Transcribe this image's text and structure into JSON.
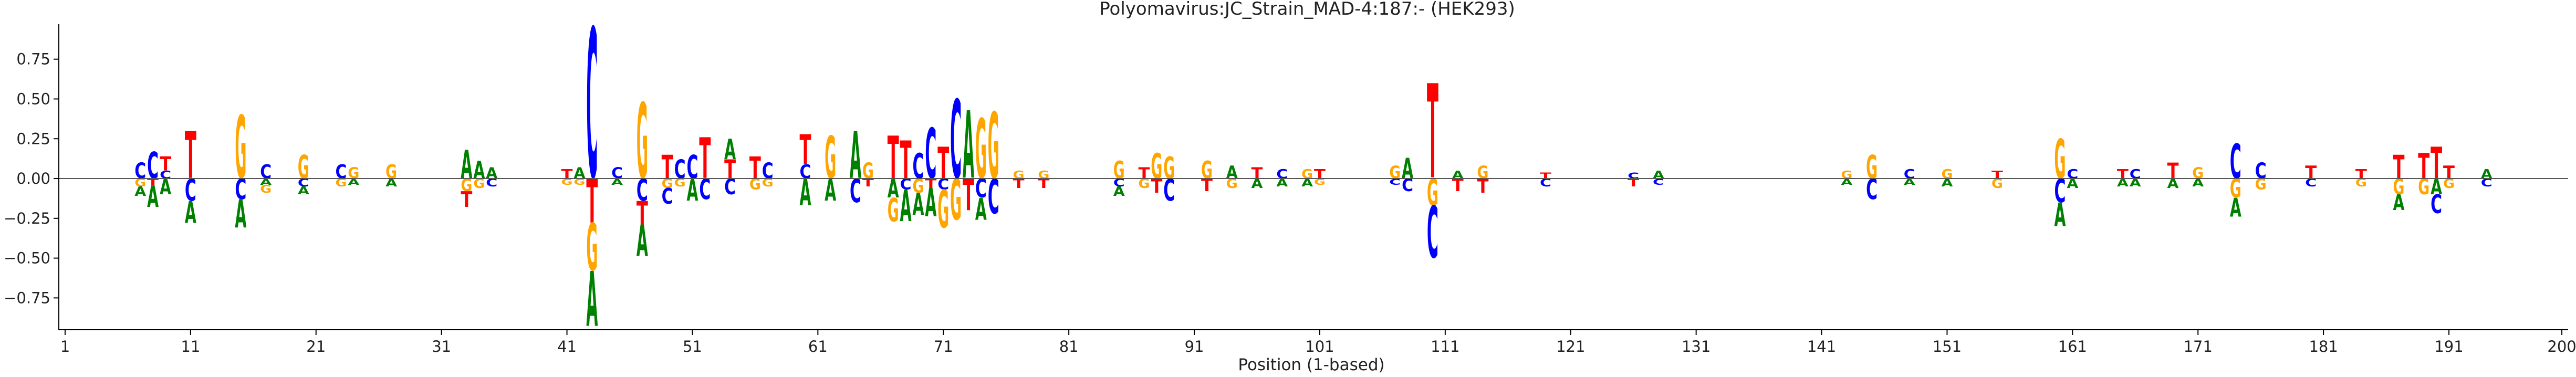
{
  "chart_data": {
    "type": "sequence-logo",
    "title": "Polyomavirus:JC_Strain_MAD-4:187:-  (HEK293)",
    "xlabel": "Position (1-based)",
    "ylabel": "",
    "xlim": [
      1,
      200
    ],
    "ylim": [
      -0.95,
      0.97
    ],
    "x_ticks": [
      1,
      11,
      21,
      31,
      41,
      51,
      61,
      71,
      81,
      91,
      101,
      111,
      121,
      131,
      141,
      151,
      161,
      171,
      181,
      191,
      200
    ],
    "y_ticks": [
      -0.75,
      -0.5,
      -0.25,
      0.0,
      0.25,
      0.5,
      0.75
    ],
    "y_tick_labels": [
      "−0.75",
      "−0.50",
      "−0.25",
      "0.00",
      "0.25",
      "0.50",
      "0.75"
    ],
    "colors": {
      "A": "#008000",
      "C": "#0000ff",
      "G": "#ffa500",
      "T": "#ff0000"
    },
    "baseline": true,
    "positions": [
      {
        "pos": 7,
        "letters": [
          {
            "b": "C",
            "v": 0.1
          },
          {
            "b": "G",
            "v": -0.05
          },
          {
            "b": "A",
            "v": -0.06
          }
        ]
      },
      {
        "pos": 8,
        "letters": [
          {
            "b": "C",
            "v": 0.17
          },
          {
            "b": "T",
            "v": -0.04
          },
          {
            "b": "A",
            "v": -0.14
          }
        ]
      },
      {
        "pos": 9,
        "letters": [
          {
            "b": "T",
            "v": 0.09
          },
          {
            "b": "C",
            "v": 0.05
          },
          {
            "b": "A",
            "v": -0.1
          }
        ]
      },
      {
        "pos": 11,
        "letters": [
          {
            "b": "T",
            "v": 0.3
          },
          {
            "b": "C",
            "v": -0.14
          },
          {
            "b": "A",
            "v": -0.14
          }
        ]
      },
      {
        "pos": 15,
        "letters": [
          {
            "b": "G",
            "v": 0.4
          },
          {
            "b": "C",
            "v": -0.13
          },
          {
            "b": "A",
            "v": -0.18
          }
        ]
      },
      {
        "pos": 17,
        "letters": [
          {
            "b": "C",
            "v": 0.09
          },
          {
            "b": "G",
            "v": -0.05
          },
          {
            "b": "A",
            "v": -0.04
          }
        ]
      },
      {
        "pos": 20,
        "letters": [
          {
            "b": "G",
            "v": 0.15
          },
          {
            "b": "C",
            "v": -0.05
          },
          {
            "b": "A",
            "v": -0.05
          }
        ]
      },
      {
        "pos": 23,
        "letters": [
          {
            "b": "C",
            "v": 0.09
          },
          {
            "b": "G",
            "v": -0.05
          }
        ]
      },
      {
        "pos": 24,
        "letters": [
          {
            "b": "G",
            "v": 0.07
          },
          {
            "b": "A",
            "v": -0.04
          }
        ]
      },
      {
        "pos": 27,
        "letters": [
          {
            "b": "G",
            "v": 0.09
          },
          {
            "b": "A",
            "v": -0.05
          }
        ]
      },
      {
        "pos": 33,
        "letters": [
          {
            "b": "A",
            "v": 0.18
          },
          {
            "b": "G",
            "v": -0.08
          },
          {
            "b": "T",
            "v": -0.1
          }
        ]
      },
      {
        "pos": 34,
        "letters": [
          {
            "b": "A",
            "v": 0.11
          },
          {
            "b": "G",
            "v": -0.06
          }
        ]
      },
      {
        "pos": 35,
        "letters": [
          {
            "b": "A",
            "v": 0.07
          },
          {
            "b": "C",
            "v": -0.05
          }
        ]
      },
      {
        "pos": 41,
        "letters": [
          {
            "b": "T",
            "v": 0.06
          },
          {
            "b": "G",
            "v": -0.04
          }
        ]
      },
      {
        "pos": 42,
        "letters": [
          {
            "b": "A",
            "v": 0.07
          },
          {
            "b": "G",
            "v": -0.04
          }
        ]
      },
      {
        "pos": 43,
        "letters": [
          {
            "b": "C",
            "v": 0.95
          },
          {
            "b": "T",
            "v": -0.28
          },
          {
            "b": "G",
            "v": -0.3
          },
          {
            "b": "A",
            "v": -0.35
          }
        ]
      },
      {
        "pos": 45,
        "letters": [
          {
            "b": "C",
            "v": 0.07
          },
          {
            "b": "A",
            "v": -0.04
          }
        ]
      },
      {
        "pos": 47,
        "letters": [
          {
            "b": "G",
            "v": 0.48
          },
          {
            "b": "T",
            "v": -0.15
          },
          {
            "b": "C",
            "v": -0.14
          },
          {
            "b": "A",
            "v": -0.2
          }
        ]
      },
      {
        "pos": 49,
        "letters": [
          {
            "b": "T",
            "v": 0.15
          },
          {
            "b": "C",
            "v": -0.1
          },
          {
            "b": "G",
            "v": -0.06
          }
        ]
      },
      {
        "pos": 50,
        "letters": [
          {
            "b": "C",
            "v": 0.12
          },
          {
            "b": "G",
            "v": -0.05
          }
        ]
      },
      {
        "pos": 51,
        "letters": [
          {
            "b": "C",
            "v": 0.15
          },
          {
            "b": "A",
            "v": -0.14
          }
        ]
      },
      {
        "pos": 52,
        "letters": [
          {
            "b": "T",
            "v": 0.26
          },
          {
            "b": "C",
            "v": -0.13
          }
        ]
      },
      {
        "pos": 54,
        "letters": [
          {
            "b": "A",
            "v": 0.13
          },
          {
            "b": "T",
            "v": 0.12
          },
          {
            "b": "C",
            "v": -0.1
          }
        ]
      },
      {
        "pos": 56,
        "letters": [
          {
            "b": "T",
            "v": 0.14
          },
          {
            "b": "G",
            "v": -0.07
          }
        ]
      },
      {
        "pos": 57,
        "letters": [
          {
            "b": "C",
            "v": 0.1
          },
          {
            "b": "G",
            "v": -0.05
          }
        ]
      },
      {
        "pos": 60,
        "letters": [
          {
            "b": "T",
            "v": 0.19
          },
          {
            "b": "C",
            "v": 0.09
          },
          {
            "b": "A",
            "v": -0.17
          }
        ]
      },
      {
        "pos": 62,
        "letters": [
          {
            "b": "G",
            "v": 0.27
          },
          {
            "b": "A",
            "v": -0.14
          }
        ]
      },
      {
        "pos": 64,
        "letters": [
          {
            "b": "A",
            "v": 0.3
          },
          {
            "b": "C",
            "v": -0.15
          }
        ]
      },
      {
        "pos": 65,
        "letters": [
          {
            "b": "G",
            "v": 0.1
          },
          {
            "b": "T",
            "v": -0.05
          }
        ]
      },
      {
        "pos": 67,
        "letters": [
          {
            "b": "T",
            "v": 0.27
          },
          {
            "b": "G",
            "v": -0.15
          },
          {
            "b": "A",
            "v": -0.12
          }
        ]
      },
      {
        "pos": 68,
        "letters": [
          {
            "b": "T",
            "v": 0.24
          },
          {
            "b": "C",
            "v": -0.07
          },
          {
            "b": "A",
            "v": -0.2
          }
        ]
      },
      {
        "pos": 69,
        "letters": [
          {
            "b": "C",
            "v": 0.16
          },
          {
            "b": "G",
            "v": -0.09
          },
          {
            "b": "A",
            "v": -0.14
          }
        ]
      },
      {
        "pos": 70,
        "letters": [
          {
            "b": "C",
            "v": 0.32
          },
          {
            "b": "T",
            "v": -0.06
          },
          {
            "b": "A",
            "v": -0.18
          }
        ]
      },
      {
        "pos": 71,
        "letters": [
          {
            "b": "T",
            "v": 0.2
          },
          {
            "b": "C",
            "v": -0.07
          },
          {
            "b": "G",
            "v": -0.24
          }
        ]
      },
      {
        "pos": 72,
        "letters": [
          {
            "b": "C",
            "v": 0.5
          },
          {
            "b": "G",
            "v": -0.26
          }
        ]
      },
      {
        "pos": 73,
        "letters": [
          {
            "b": "A",
            "v": 0.43
          },
          {
            "b": "T",
            "v": -0.2
          }
        ]
      },
      {
        "pos": 74,
        "letters": [
          {
            "b": "G",
            "v": 0.38
          },
          {
            "b": "C",
            "v": -0.12
          },
          {
            "b": "A",
            "v": -0.14
          }
        ]
      },
      {
        "pos": 75,
        "letters": [
          {
            "b": "G",
            "v": 0.42
          },
          {
            "b": "C",
            "v": -0.22
          }
        ]
      },
      {
        "pos": 77,
        "letters": [
          {
            "b": "G",
            "v": 0.05
          },
          {
            "b": "T",
            "v": -0.06
          }
        ]
      },
      {
        "pos": 79,
        "letters": [
          {
            "b": "G",
            "v": 0.05
          },
          {
            "b": "T",
            "v": -0.06
          }
        ]
      },
      {
        "pos": 85,
        "letters": [
          {
            "b": "G",
            "v": 0.11
          },
          {
            "b": "C",
            "v": -0.05
          },
          {
            "b": "A",
            "v": -0.06
          }
        ]
      },
      {
        "pos": 87,
        "letters": [
          {
            "b": "T",
            "v": 0.07
          },
          {
            "b": "G",
            "v": -0.06
          }
        ]
      },
      {
        "pos": 88,
        "letters": [
          {
            "b": "G",
            "v": 0.16
          },
          {
            "b": "T",
            "v": -0.09
          }
        ]
      },
      {
        "pos": 89,
        "letters": [
          {
            "b": "G",
            "v": 0.14
          },
          {
            "b": "C",
            "v": -0.14
          }
        ]
      },
      {
        "pos": 92,
        "letters": [
          {
            "b": "G",
            "v": 0.11
          },
          {
            "b": "T",
            "v": -0.08
          }
        ]
      },
      {
        "pos": 94,
        "letters": [
          {
            "b": "A",
            "v": 0.08
          },
          {
            "b": "G",
            "v": -0.06
          }
        ]
      },
      {
        "pos": 96,
        "letters": [
          {
            "b": "T",
            "v": 0.07
          },
          {
            "b": "A",
            "v": -0.06
          }
        ]
      },
      {
        "pos": 98,
        "letters": [
          {
            "b": "C",
            "v": 0.06
          },
          {
            "b": "A",
            "v": -0.05
          }
        ]
      },
      {
        "pos": 100,
        "letters": [
          {
            "b": "G",
            "v": 0.06
          },
          {
            "b": "A",
            "v": -0.05
          }
        ]
      },
      {
        "pos": 101,
        "letters": [
          {
            "b": "T",
            "v": 0.06
          },
          {
            "b": "G",
            "v": -0.04
          }
        ]
      },
      {
        "pos": 107,
        "letters": [
          {
            "b": "G",
            "v": 0.08
          },
          {
            "b": "C",
            "v": -0.04
          }
        ]
      },
      {
        "pos": 108,
        "letters": [
          {
            "b": "A",
            "v": 0.13
          },
          {
            "b": "C",
            "v": -0.08
          }
        ]
      },
      {
        "pos": 110,
        "letters": [
          {
            "b": "T",
            "v": 0.6
          },
          {
            "b": "G",
            "v": -0.17
          },
          {
            "b": "C",
            "v": -0.33
          }
        ]
      },
      {
        "pos": 112,
        "letters": [
          {
            "b": "A",
            "v": 0.05
          },
          {
            "b": "T",
            "v": -0.08
          }
        ]
      },
      {
        "pos": 114,
        "letters": [
          {
            "b": "G",
            "v": 0.08
          },
          {
            "b": "T",
            "v": -0.09
          }
        ]
      },
      {
        "pos": 119,
        "letters": [
          {
            "b": "T",
            "v": 0.04
          },
          {
            "b": "C",
            "v": -0.05
          }
        ]
      },
      {
        "pos": 126,
        "letters": [
          {
            "b": "C",
            "v": 0.04
          },
          {
            "b": "T",
            "v": -0.05
          }
        ]
      },
      {
        "pos": 128,
        "letters": [
          {
            "b": "A",
            "v": 0.05
          },
          {
            "b": "C",
            "v": -0.04
          }
        ]
      },
      {
        "pos": 143,
        "letters": [
          {
            "b": "G",
            "v": 0.05
          },
          {
            "b": "A",
            "v": -0.04
          }
        ]
      },
      {
        "pos": 145,
        "letters": [
          {
            "b": "G",
            "v": 0.15
          },
          {
            "b": "C",
            "v": -0.13
          }
        ]
      },
      {
        "pos": 148,
        "letters": [
          {
            "b": "C",
            "v": 0.06
          },
          {
            "b": "A",
            "v": -0.04
          }
        ]
      },
      {
        "pos": 151,
        "letters": [
          {
            "b": "G",
            "v": 0.06
          },
          {
            "b": "A",
            "v": -0.05
          }
        ]
      },
      {
        "pos": 155,
        "letters": [
          {
            "b": "T",
            "v": 0.05
          },
          {
            "b": "G",
            "v": -0.06
          }
        ]
      },
      {
        "pos": 160,
        "letters": [
          {
            "b": "G",
            "v": 0.25
          },
          {
            "b": "C",
            "v": -0.15
          },
          {
            "b": "A",
            "v": -0.15
          }
        ]
      },
      {
        "pos": 161,
        "letters": [
          {
            "b": "C",
            "v": 0.06
          },
          {
            "b": "A",
            "v": -0.06
          }
        ]
      },
      {
        "pos": 165,
        "letters": [
          {
            "b": "T",
            "v": 0.06
          },
          {
            "b": "A",
            "v": -0.05
          }
        ]
      },
      {
        "pos": 166,
        "letters": [
          {
            "b": "C",
            "v": 0.06
          },
          {
            "b": "A",
            "v": -0.05
          }
        ]
      },
      {
        "pos": 169,
        "letters": [
          {
            "b": "T",
            "v": 0.1
          },
          {
            "b": "A",
            "v": -0.06
          }
        ]
      },
      {
        "pos": 171,
        "letters": [
          {
            "b": "G",
            "v": 0.07
          },
          {
            "b": "A",
            "v": -0.05
          }
        ]
      },
      {
        "pos": 174,
        "letters": [
          {
            "b": "C",
            "v": 0.22
          },
          {
            "b": "G",
            "v": -0.12
          },
          {
            "b": "A",
            "v": -0.12
          }
        ]
      },
      {
        "pos": 176,
        "letters": [
          {
            "b": "C",
            "v": 0.1
          },
          {
            "b": "G",
            "v": -0.07
          }
        ]
      },
      {
        "pos": 180,
        "letters": [
          {
            "b": "T",
            "v": 0.08
          },
          {
            "b": "C",
            "v": -0.05
          }
        ]
      },
      {
        "pos": 184,
        "letters": [
          {
            "b": "T",
            "v": 0.06
          },
          {
            "b": "G",
            "v": -0.05
          }
        ]
      },
      {
        "pos": 187,
        "letters": [
          {
            "b": "T",
            "v": 0.15
          },
          {
            "b": "G",
            "v": -0.1
          },
          {
            "b": "A",
            "v": -0.1
          }
        ]
      },
      {
        "pos": 189,
        "letters": [
          {
            "b": "T",
            "v": 0.16
          },
          {
            "b": "G",
            "v": -0.1
          }
        ]
      },
      {
        "pos": 190,
        "letters": [
          {
            "b": "T",
            "v": 0.2
          },
          {
            "b": "C",
            "v": -0.12
          },
          {
            "b": "A",
            "v": -0.1
          }
        ]
      },
      {
        "pos": 191,
        "letters": [
          {
            "b": "T",
            "v": 0.08
          },
          {
            "b": "G",
            "v": -0.06
          }
        ]
      },
      {
        "pos": 194,
        "letters": [
          {
            "b": "A",
            "v": 0.06
          },
          {
            "b": "C",
            "v": -0.05
          }
        ]
      }
    ]
  }
}
